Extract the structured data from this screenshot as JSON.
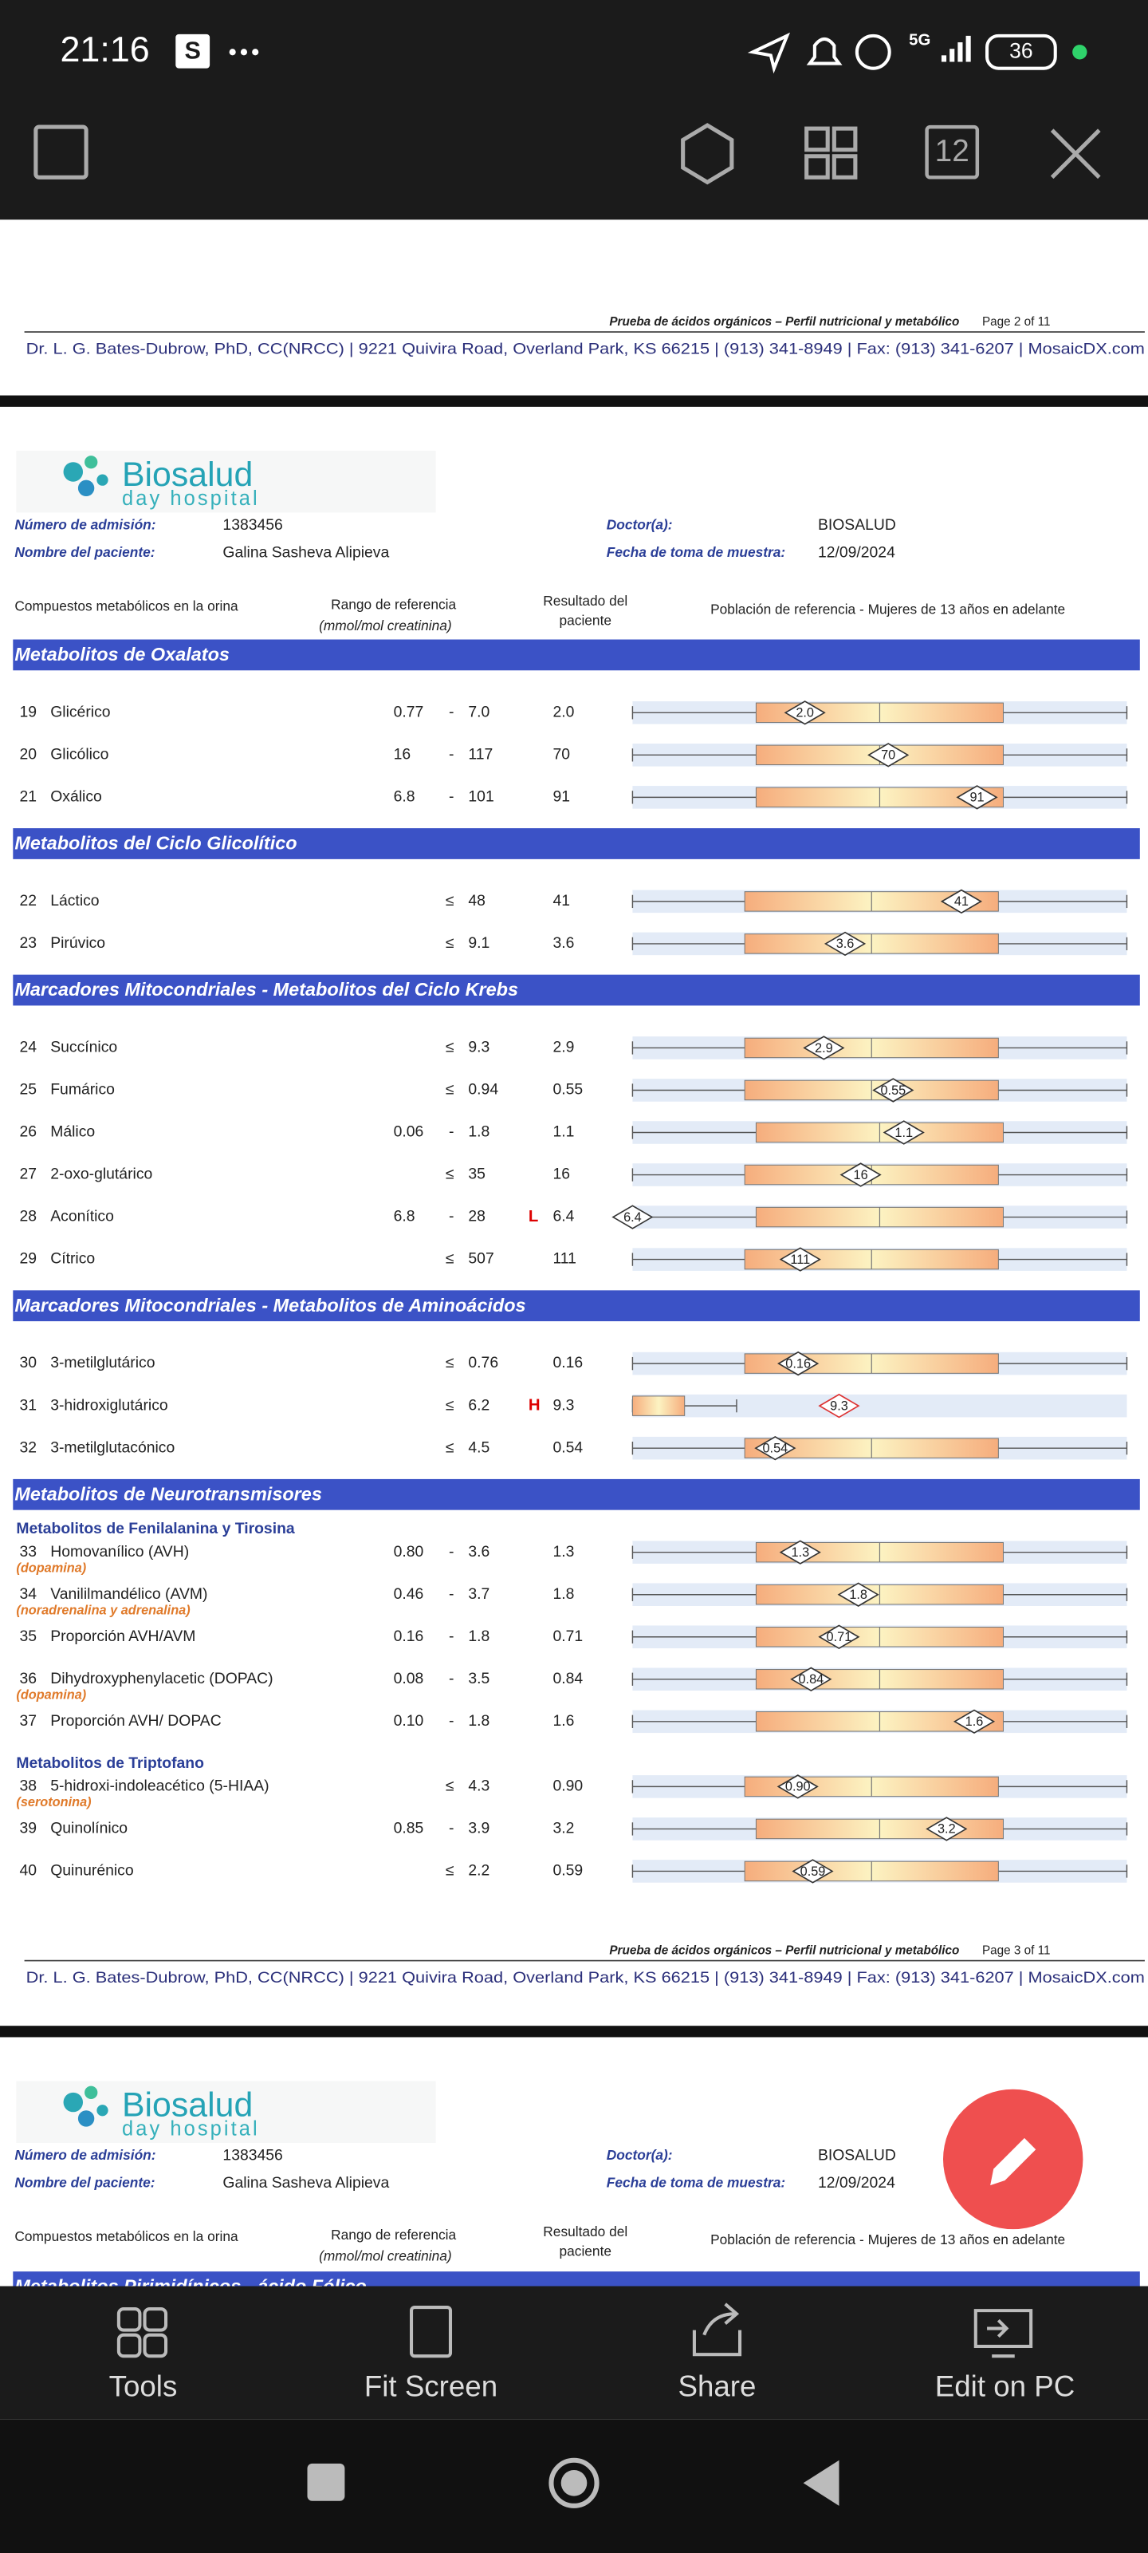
{
  "status_bar": {
    "time": "21:16",
    "app_badge": "S",
    "network": "5G",
    "battery": "36"
  },
  "toolbar": {
    "page_button": "12"
  },
  "document": {
    "top_footer": {
      "title": "Prueba de ácidos orgánicos – Perfil nutricional y metabólico",
      "page": "Page 2 of 11",
      "address": "Dr. L. G. Bates-Dubrow, PhD, CC(NRCC) | 9221 Quivira Road, Overland Park, KS 66215  |  (913) 341-8949  |  Fax: (913) 341-6207 | MosaicDX.com"
    },
    "page": {
      "logo": {
        "name": "Biosalud",
        "sub": "day hospital"
      },
      "fields": [
        {
          "label": "Número de admisión:",
          "value": "1383456"
        },
        {
          "label": "Nombre del paciente:",
          "value": "Galina Sasheva Alipieva"
        },
        {
          "label": "Doctor(a):",
          "value": "BIOSALUD"
        },
        {
          "label": "Fecha de toma de muestra:",
          "value": "12/09/2024"
        }
      ],
      "columns": {
        "compounds": "Compuestos metabólicos en la orina",
        "range": "Rango de referencia",
        "range_unit": "(mmol/mol creatinina)",
        "result": "Resultado del",
        "result_2": "paciente",
        "population": "Población de referencia - Mujeres de 13 años en adelante"
      },
      "sections": [
        {
          "title": "Metabolitos de Oxalatos",
          "groups": [
            {
              "rows": [
                {
                  "num": "19",
                  "name": "Glicérico",
                  "low": "0.77",
                  "sep": "-",
                  "high": "7.0",
                  "value": "2.0"
                },
                {
                  "num": "20",
                  "name": "Glicólico",
                  "low": "16",
                  "sep": "-",
                  "high": "117",
                  "value": "70"
                },
                {
                  "num": "21",
                  "name": "Oxálico",
                  "low": "6.8",
                  "sep": "-",
                  "high": "101",
                  "value": "91"
                }
              ]
            }
          ]
        },
        {
          "title": "Metabolitos del Ciclo Glicolítico",
          "groups": [
            {
              "rows": [
                {
                  "num": "22",
                  "name": "Láctico",
                  "sep": "≤",
                  "high": "48",
                  "value": "41"
                },
                {
                  "num": "23",
                  "name": "Pirúvico",
                  "sep": "≤",
                  "high": "9.1",
                  "value": "3.6"
                }
              ]
            }
          ]
        },
        {
          "title": "Marcadores Mitocondriales - Metabolitos del Ciclo Krebs",
          "groups": [
            {
              "rows": [
                {
                  "num": "24",
                  "name": "Succínico",
                  "sep": "≤",
                  "high": "9.3",
                  "value": "2.9"
                },
                {
                  "num": "25",
                  "name": "Fumárico",
                  "sep": "≤",
                  "high": "0.94",
                  "value": "0.55"
                },
                {
                  "num": "26",
                  "name": "Málico",
                  "low": "0.06",
                  "sep": "-",
                  "high": "1.8",
                  "value": "1.1"
                },
                {
                  "num": "27",
                  "name": "2-oxo-glutárico",
                  "sep": "≤",
                  "high": "35",
                  "value": "16"
                },
                {
                  "num": "28",
                  "name": "Aconítico",
                  "low": "6.8",
                  "sep": "-",
                  "high": "28",
                  "flag": "L",
                  "value": "6.4"
                },
                {
                  "num": "29",
                  "name": "Cítrico",
                  "sep": "≤",
                  "high": "507",
                  "value": "111"
                }
              ]
            }
          ]
        },
        {
          "title": "Marcadores Mitocondriales - Metabolitos de Aminoácidos",
          "groups": [
            {
              "rows": [
                {
                  "num": "30",
                  "name": "3-metilglutárico",
                  "sep": "≤",
                  "high": "0.76",
                  "value": "0.16"
                },
                {
                  "num": "31",
                  "name": "3-hidroxiglutárico",
                  "sep": "≤",
                  "high": "6.2",
                  "flag": "H",
                  "value": "9.3"
                },
                {
                  "num": "32",
                  "name": "3-metilglutacónico",
                  "sep": "≤",
                  "high": "4.5",
                  "value": "0.54"
                }
              ]
            }
          ]
        },
        {
          "title": "Metabolitos de Neurotransmisores",
          "groups": [
            {
              "title": "Metabolitos de Fenilalanina y Tirosina",
              "rows": [
                {
                  "num": "33",
                  "name": "Homovanílico (AVH)",
                  "note": "(dopamina)",
                  "low": "0.80",
                  "sep": "-",
                  "high": "3.6",
                  "value": "1.3"
                },
                {
                  "num": "34",
                  "name": "Vanililmandélico (AVM)",
                  "note": "(noradrenalina y adrenalina)",
                  "low": "0.46",
                  "sep": "-",
                  "high": "3.7",
                  "value": "1.8"
                },
                {
                  "num": "35",
                  "name": "Proporción AVH/AVM",
                  "low": "0.16",
                  "sep": "-",
                  "high": "1.8",
                  "value": "0.71"
                },
                {
                  "num": "36",
                  "name": "Dihydroxyphenylacetic (DOPAC)",
                  "note": "(dopamina)",
                  "low": "0.08",
                  "sep": "-",
                  "high": "3.5",
                  "value": "0.84"
                },
                {
                  "num": "37",
                  "name": "Proporción AVH/ DOPAC",
                  "low": "0.10",
                  "sep": "-",
                  "high": "1.8",
                  "value": "1.6"
                }
              ]
            },
            {
              "title": "Metabolitos de Triptofano",
              "rows": [
                {
                  "num": "38",
                  "name": "5-hidroxi-indoleacético (5-HIAA)",
                  "note": "(serotonina)",
                  "sep": "≤",
                  "high": "4.3",
                  "value": "0.90"
                },
                {
                  "num": "39",
                  "name": "Quinolínico",
                  "low": "0.85",
                  "sep": "-",
                  "high": "3.9",
                  "value": "3.2"
                },
                {
                  "num": "40",
                  "name": "Quinurénico",
                  "sep": "≤",
                  "high": "2.2",
                  "value": "0.59"
                }
              ]
            }
          ]
        }
      ],
      "footer": {
        "title": "Prueba de ácidos orgánicos – Perfil nutricional y metabólico",
        "page": "Page 3 of 11",
        "address": "Dr. L. G. Bates-Dubrow, PhD, CC(NRCC) | 9221 Quivira Road, Overland Park, KS 66215  |  (913) 341-8949  |  Fax: (913) 341-6207 | MosaicDX.com"
      }
    },
    "next_page": {
      "logo": {
        "name": "Biosalud",
        "sub": "day hospital"
      },
      "fields": [
        {
          "label": "Número de admisión:",
          "value": "1383456"
        },
        {
          "label": "Nombre del paciente:",
          "value": "Galina Sasheva Alipieva"
        },
        {
          "label": "Doctor(a):",
          "value": "BIOSALUD"
        },
        {
          "label": "Fecha de toma de muestra:",
          "value": "12/09/2024"
        }
      ],
      "columns": {
        "compounds": "Compuestos metabólicos en la orina",
        "range": "Rango de referencia",
        "range_unit": "(mmol/mol creatinina)",
        "result": "Resultado del",
        "result_2": "paciente",
        "population": "Población de referencia - Mujeres de 13 años en adelante"
      },
      "section_title": "Metabolitos Pirimidínicos - ácido Fólico"
    }
  },
  "bottom_bar": {
    "items": [
      "Tools",
      "Fit Screen",
      "Share",
      "Edit on PC"
    ]
  }
}
